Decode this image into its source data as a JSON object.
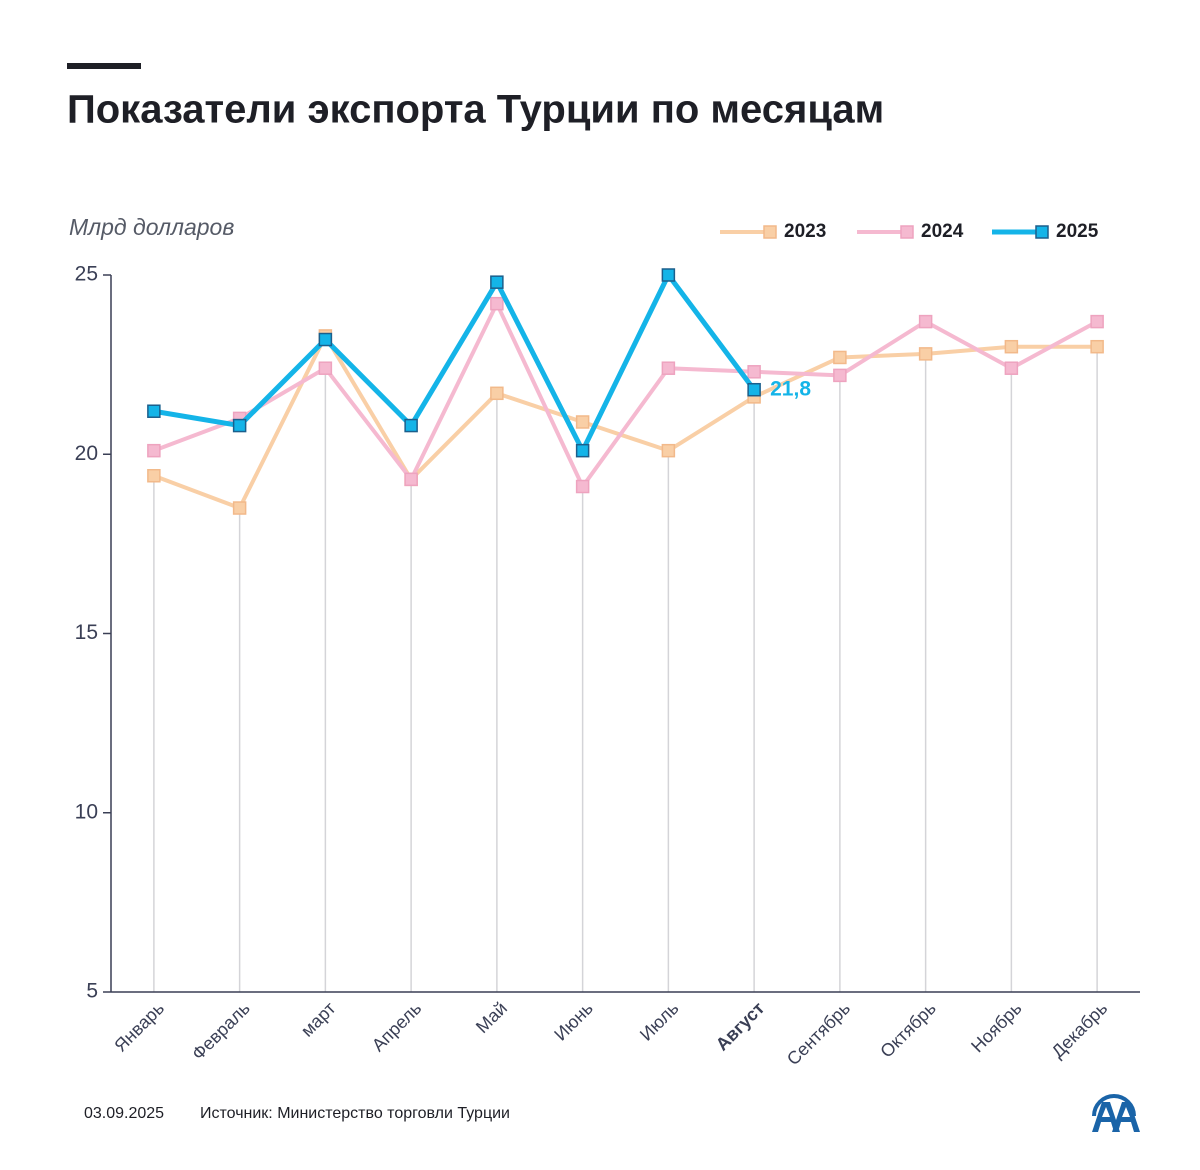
{
  "chart_data": {
    "type": "line",
    "title": "Показатели экспорта Турции по месяцам",
    "y_label": "Млрд долларов",
    "categories": [
      "Январь",
      "Февраль",
      "март",
      "Апрель",
      "Май",
      "Июнь",
      "Июль",
      "Август",
      "Сентябрь",
      "Октябрь",
      "Ноябрь",
      "Декабрь"
    ],
    "highlight_category": "Август",
    "series": [
      {
        "name": "2023",
        "color": "#f9cfa6",
        "values": [
          19.4,
          18.5,
          23.3,
          19.3,
          21.7,
          20.9,
          20.1,
          21.6,
          22.7,
          22.8,
          23.0,
          23.0
        ]
      },
      {
        "name": "2024",
        "color": "#f5b9d0",
        "values": [
          20.1,
          21.0,
          22.4,
          19.3,
          24.2,
          19.1,
          22.4,
          22.3,
          22.2,
          23.7,
          22.4,
          23.7
        ]
      },
      {
        "name": "2025",
        "color": "#14b4e8",
        "values": [
          21.2,
          20.8,
          23.2,
          20.8,
          24.8,
          20.1,
          25.0,
          21.8,
          null,
          null,
          null,
          null
        ],
        "value_labels": [
          null,
          null,
          null,
          null,
          null,
          null,
          null,
          "21,8",
          null,
          null,
          null,
          null
        ]
      }
    ],
    "ylim": [
      5,
      25
    ],
    "yticks": [
      5,
      10,
      15,
      20,
      25
    ],
    "grid": false,
    "legend": "top-right"
  },
  "footer": {
    "date": "03.09.2025",
    "source": "Источник: Министерство торговли Турции"
  }
}
